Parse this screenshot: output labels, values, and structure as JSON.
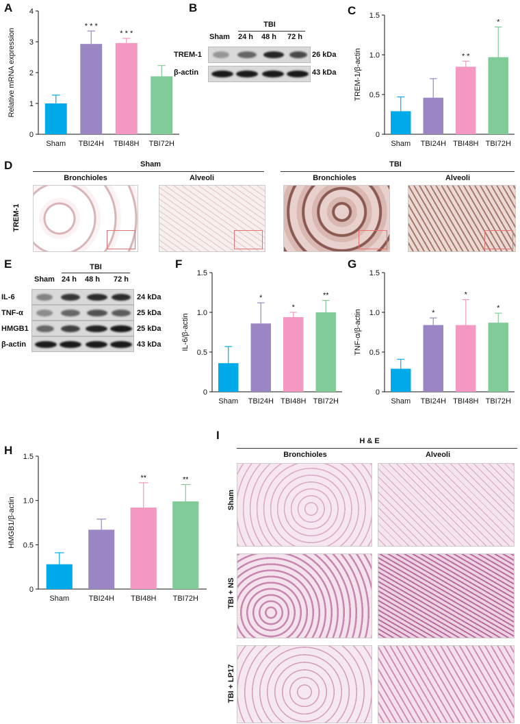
{
  "panel_letters": {
    "A": "A",
    "B": "B",
    "C": "C",
    "D": "D",
    "E": "E",
    "F": "F",
    "G": "G",
    "H": "H",
    "I": "I"
  },
  "colors": {
    "sham": "#00a9e8",
    "tbi24": "#9b86c4",
    "tbi48": "#f298c1",
    "tbi72": "#80cb98"
  },
  "chart_data": [
    {
      "id": "A",
      "type": "bar",
      "categories": [
        "Sham",
        "TBI24H",
        "TBI48H",
        "TBI72H"
      ],
      "values": [
        1.0,
        2.93,
        2.96,
        1.88
      ],
      "errors": [
        0.27,
        0.42,
        0.15,
        0.35
      ],
      "significance": [
        "",
        "* * *",
        "* * *",
        ""
      ],
      "ylabel": "Relative mRNA expression",
      "ylim": [
        0,
        4
      ],
      "yticks": [
        0,
        1,
        2,
        3,
        4
      ],
      "ytick_labels": [
        "0",
        "1",
        "2",
        "3",
        "4"
      ]
    },
    {
      "id": "C",
      "type": "bar",
      "categories": [
        "Sham",
        "TBI24H",
        "TBI48H",
        "TBI72H"
      ],
      "values": [
        0.29,
        0.46,
        0.85,
        0.97
      ],
      "errors": [
        0.18,
        0.24,
        0.07,
        0.38
      ],
      "significance": [
        "",
        "",
        "* *",
        "*"
      ],
      "ylabel": "TREM-1/β-actin",
      "ylim": [
        0,
        1.5
      ],
      "yticks": [
        0,
        0.5,
        1.0,
        1.5
      ],
      "ytick_labels": [
        "0",
        "0.5",
        "1.0",
        "1.5"
      ]
    },
    {
      "id": "F",
      "type": "bar",
      "categories": [
        "Sham",
        "TBI24H",
        "TBI48H",
        "TBI72H"
      ],
      "values": [
        0.36,
        0.86,
        0.94,
        1.0
      ],
      "errors": [
        0.21,
        0.26,
        0.06,
        0.15
      ],
      "significance": [
        "",
        "*",
        "*",
        "**"
      ],
      "ylabel": "IL-6/β-actin",
      "ylim": [
        0,
        1.5
      ],
      "yticks": [
        0,
        0.5,
        1.0,
        1.5
      ],
      "ytick_labels": [
        "0",
        "0.5",
        "1.0",
        "1.5"
      ]
    },
    {
      "id": "G",
      "type": "bar",
      "categories": [
        "Sham",
        "TBI24H",
        "TBI48H",
        "TBI72H"
      ],
      "values": [
        0.29,
        0.84,
        0.84,
        0.87
      ],
      "errors": [
        0.12,
        0.09,
        0.32,
        0.12
      ],
      "significance": [
        "",
        "*",
        "*",
        "*"
      ],
      "ylabel": "TNF-α/β-actin",
      "ylim": [
        0,
        1.5
      ],
      "yticks": [
        0,
        0.5,
        1.0,
        1.5
      ],
      "ytick_labels": [
        "0",
        "0.5",
        "1.0",
        "1.5"
      ]
    },
    {
      "id": "H",
      "type": "bar",
      "categories": [
        "Sham",
        "TBI24H",
        "TBI48H",
        "TBI72H"
      ],
      "values": [
        0.28,
        0.67,
        0.92,
        0.99
      ],
      "errors": [
        0.13,
        0.12,
        0.28,
        0.19
      ],
      "significance": [
        "",
        "",
        "**",
        "**"
      ],
      "ylabel": "HMGB1/β-actin",
      "ylim": [
        0,
        1.5
      ],
      "yticks": [
        0,
        0.5,
        1.0,
        1.5
      ],
      "ytick_labels": [
        "0",
        "0.5",
        "1.0",
        "1.5"
      ]
    }
  ],
  "blot_B": {
    "group": "TBI",
    "lanes": [
      "Sham",
      "24 h",
      "48 h",
      "72 h"
    ],
    "rows": [
      {
        "label": "TREM-1",
        "kda": "26 kDa"
      },
      {
        "label": "β-actin",
        "kda": "43 kDa"
      }
    ]
  },
  "blot_E": {
    "group": "TBI",
    "lanes": [
      "Sham",
      "24 h",
      "48 h",
      "72 h"
    ],
    "rows": [
      {
        "label": "IL-6",
        "kda": "24 kDa"
      },
      {
        "label": "TNF-α",
        "kda": "25 kDa"
      },
      {
        "label": "HMGB1",
        "kda": "25 kDa"
      },
      {
        "label": "β-actin",
        "kda": "43 kDa"
      }
    ]
  },
  "panel_D": {
    "groups": [
      "Sham",
      "TBI"
    ],
    "columns": [
      "Bronchioles",
      "Alveoli",
      "Bronchioles",
      "Alveoli"
    ],
    "row_label": "TREM-1"
  },
  "panel_I": {
    "title": "H & E",
    "columns": [
      "Bronchioles",
      "Alveoli"
    ],
    "rows": [
      "Sham",
      "TBI + NS",
      "TBI + LP17"
    ]
  }
}
